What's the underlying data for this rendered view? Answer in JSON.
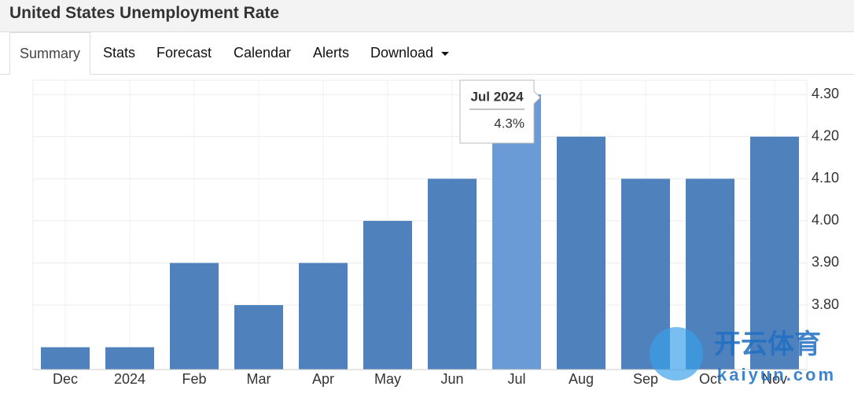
{
  "header": {
    "title": "United States Unemployment Rate"
  },
  "tabs": [
    "Summary",
    "Stats",
    "Forecast",
    "Calendar",
    "Alerts",
    "Download"
  ],
  "active_tab": 0,
  "chart_data": {
    "type": "bar",
    "categories": [
      "Dec",
      "2024",
      "Feb",
      "Mar",
      "Apr",
      "May",
      "Jun",
      "Jul",
      "Aug",
      "Sep",
      "Oct",
      "Nov"
    ],
    "values": [
      3.7,
      3.7,
      3.9,
      3.8,
      3.9,
      4.0,
      4.1,
      4.3,
      4.2,
      4.1,
      4.1,
      4.2
    ],
    "color": "#4f81bd",
    "highlight_color": "#6a9bd6",
    "ylim": [
      3.647,
      4.334
    ],
    "yticks": [
      {
        "value": 3.8,
        "label": "3.80"
      },
      {
        "value": 3.9,
        "label": "3.90"
      },
      {
        "value": 4.0,
        "label": "4.00"
      },
      {
        "value": 4.1,
        "label": "4.10"
      },
      {
        "value": 4.2,
        "label": "4.20"
      },
      {
        "value": 4.3,
        "label": "4.30"
      }
    ],
    "grid": true,
    "y_axis_side": "right",
    "tooltip": {
      "index": 7,
      "title": "Jul 2024",
      "label": "4.3%"
    }
  },
  "watermark": {
    "brand": "开云体育",
    "site": "kaiyun.com"
  }
}
